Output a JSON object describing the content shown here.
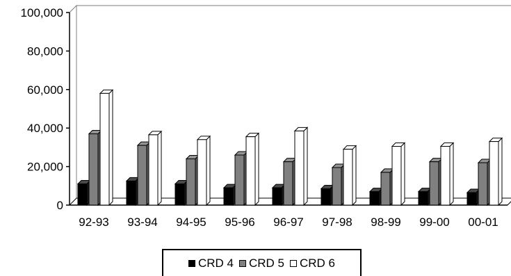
{
  "chart_data": {
    "type": "bar",
    "categories": [
      "92-93",
      "93-94",
      "94-95",
      "95-96",
      "96-97",
      "97-98",
      "98-99",
      "99-00",
      "00-01"
    ],
    "series": [
      {
        "name": "CRD 4",
        "values": [
          11000,
          12500,
          11000,
          9000,
          9000,
          8500,
          7000,
          7000,
          6500
        ],
        "color": "#000000"
      },
      {
        "name": "CRD 5",
        "values": [
          37000,
          31000,
          24000,
          26000,
          22500,
          19500,
          17000,
          22500,
          22000
        ],
        "color": "#808080"
      },
      {
        "name": "CRD 6",
        "values": [
          58000,
          36500,
          34000,
          35500,
          38500,
          29000,
          30500,
          30500,
          33000
        ],
        "color": "#ffffff"
      }
    ],
    "ylim": [
      0,
      100000
    ],
    "yticks": [
      "0",
      "20,000",
      "40,000",
      "60,000",
      "80,000",
      "100,000"
    ],
    "grid": false,
    "legend": "bottom",
    "three_d": true
  }
}
